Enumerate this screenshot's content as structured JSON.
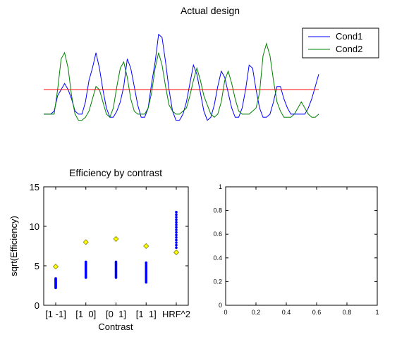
{
  "chart_data": [
    {
      "type": "line",
      "title": "Actual design",
      "axes_visible": false,
      "x": [
        1,
        2,
        3,
        4,
        5,
        6,
        7,
        8,
        9,
        10,
        11,
        12,
        13,
        14,
        15,
        16,
        17,
        18,
        19,
        20,
        21,
        22,
        23,
        24,
        25,
        26,
        27,
        28,
        29,
        30,
        31,
        32,
        33,
        34,
        35,
        36,
        37,
        38,
        39,
        40,
        41,
        42,
        43,
        44,
        45,
        46,
        47,
        48,
        49,
        50,
        51,
        52,
        53,
        54,
        55,
        56,
        57,
        58,
        59,
        60,
        61,
        62,
        63,
        64,
        65,
        66,
        67,
        68,
        69,
        70,
        71,
        72,
        73,
        74,
        75,
        76,
        77,
        78,
        79,
        80
      ],
      "series": [
        {
          "name": "Cond1",
          "color": "#0000ff",
          "values": [
            0,
            0,
            0,
            0.05,
            0.3,
            0.4,
            0.5,
            0.4,
            0.25,
            0.05,
            0,
            0,
            0.2,
            0.55,
            0.75,
            1.0,
            0.75,
            0.4,
            0.1,
            -0.05,
            -0.05,
            0.05,
            0.2,
            0.45,
            0.9,
            0.75,
            0.45,
            0.15,
            -0.05,
            -0.05,
            0.1,
            0.5,
            0.85,
            1.3,
            1.25,
            0.85,
            0.4,
            0.05,
            -0.1,
            -0.1,
            0.0,
            0.2,
            0.5,
            0.8,
            0.65,
            0.35,
            0.05,
            -0.1,
            -0.05,
            0.15,
            0.45,
            0.7,
            0.6,
            0.35,
            0.1,
            -0.05,
            -0.05,
            0.1,
            0.4,
            0.8,
            0.75,
            0.4,
            0.1,
            -0.05,
            -0.05,
            0.0,
            0.2,
            0.45,
            0.45,
            0.25,
            0.1,
            0.0,
            0.0,
            0.0,
            0.0,
            0.0,
            0.1,
            0.25,
            0.45,
            0.65
          ]
        },
        {
          "name": "Cond2",
          "color": "#008000",
          "values": [
            0,
            0,
            0,
            0,
            0.4,
            0.9,
            1.0,
            0.75,
            0.3,
            0.0,
            -0.1,
            -0.1,
            -0.05,
            0.05,
            0.25,
            0.45,
            0.4,
            0.2,
            0.0,
            -0.05,
            0.1,
            0.45,
            0.75,
            0.85,
            0.6,
            0.25,
            0.05,
            0.0,
            0.0,
            0.0,
            0.1,
            0.35,
            0.75,
            1.0,
            0.8,
            0.45,
            0.15,
            0.05,
            0.0,
            0.0,
            0.05,
            0.1,
            0.3,
            0.55,
            0.75,
            0.55,
            0.3,
            0.15,
            0.0,
            -0.05,
            0.0,
            0.2,
            0.55,
            0.7,
            0.5,
            0.25,
            0.05,
            0.0,
            0.0,
            0.0,
            0.05,
            0.1,
            0.35,
            0.95,
            1.15,
            0.95,
            0.55,
            0.2,
            0.05,
            -0.05,
            -0.05,
            -0.05,
            0.0,
            0.1,
            0.2,
            0.1,
            0.0,
            -0.05,
            -0.05,
            0.0
          ]
        },
        {
          "name": "",
          "color": "#ff0000",
          "values": "constant",
          "constant_value": 0.4
        }
      ],
      "ylim": [
        -0.15,
        1.4
      ],
      "legend": {
        "position": "top-right",
        "entries": [
          "Cond1",
          "Cond2"
        ]
      }
    },
    {
      "type": "scatter",
      "title": "Efficiency by contrast",
      "xlabel": "Contrast",
      "ylabel": "sqrt(Efficiency)",
      "categories": [
        "[1 -1]",
        "[1  0]",
        "[0  1]",
        "[1  1]",
        "HRF^2"
      ],
      "ylim": [
        0,
        15
      ],
      "yticks": [
        "0",
        "5",
        "10",
        "15"
      ],
      "point_ranges": [
        {
          "category": "[1 -1]",
          "min": 2.2,
          "max": 3.4
        },
        {
          "category": "[1  0]",
          "min": 3.5,
          "max": 5.5
        },
        {
          "category": "[0  1]",
          "min": 3.5,
          "max": 5.5
        },
        {
          "category": "[1  1]",
          "min": 2.9,
          "max": 5.4
        },
        {
          "category": "HRF^2",
          "min": 7.3,
          "max": 11.8
        }
      ],
      "markers": [
        4.9,
        8.0,
        8.4,
        7.5,
        6.7
      ],
      "point_color": "#0000ff",
      "marker_color": "#ffff00"
    },
    {
      "type": "scatter",
      "title": "",
      "xlim": [
        0,
        1
      ],
      "ylim": [
        0,
        1
      ],
      "xticks": [
        "0",
        "0.2",
        "0.4",
        "0.6",
        "0.8",
        "1"
      ],
      "yticks": [
        "0",
        "0.2",
        "0.4",
        "0.6",
        "0.8",
        "1"
      ],
      "empty": true
    }
  ]
}
